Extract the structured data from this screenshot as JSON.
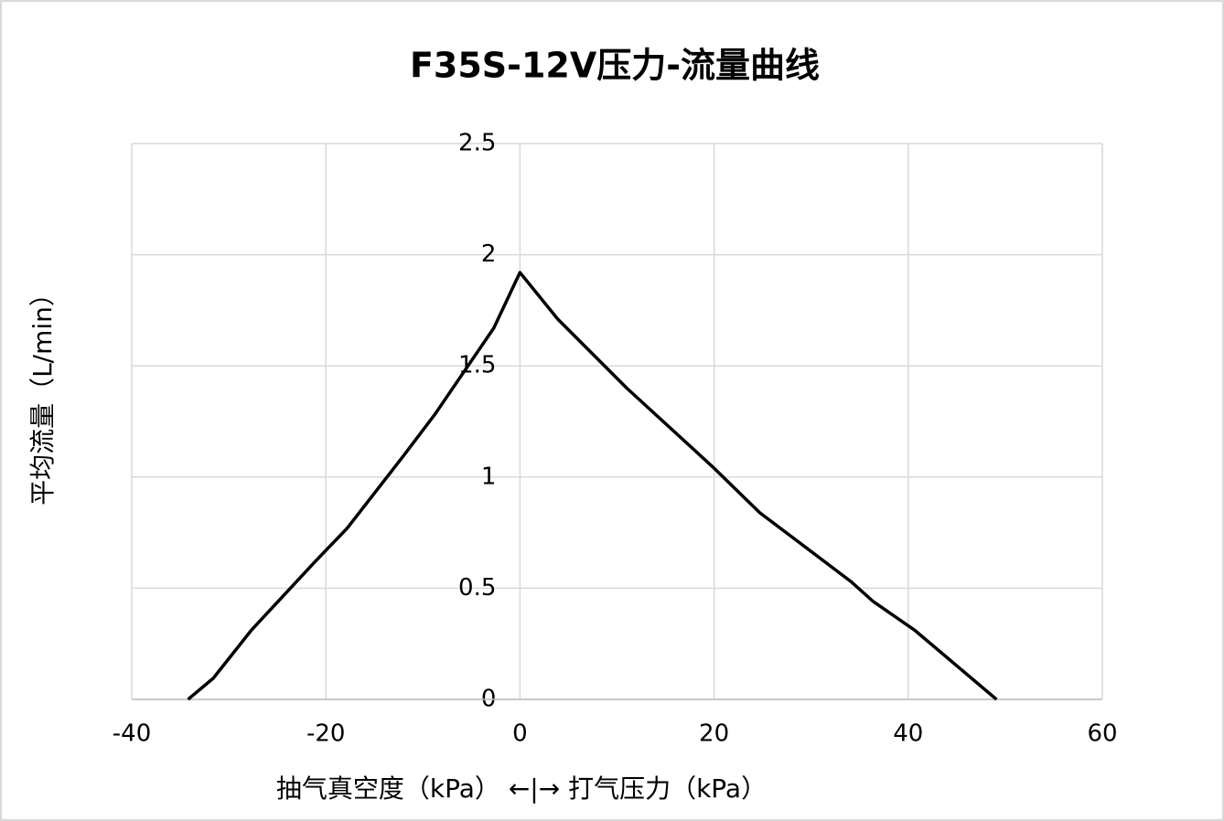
{
  "chart_data": {
    "type": "line",
    "title": "F35S-12V压力-流量曲线",
    "x_label": "抽气真空度（kPa）  ←|→  打气压力（kPa）",
    "y_label": "平均流量（L/min）",
    "xlim": [
      -40,
      60
    ],
    "xticks": [
      -40,
      -20,
      0,
      20,
      40,
      60
    ],
    "ylim": [
      0,
      2.5
    ],
    "yticks": [
      0,
      0.5,
      1,
      1.5,
      2,
      2.5
    ],
    "grid": true,
    "series": [
      {
        "color": "#000000",
        "x": [
          -34.2,
          -31.6,
          -27.7,
          -21.1,
          -17.8,
          -12.1,
          -8.8,
          -2.7,
          0,
          3.9,
          11,
          20,
          24.7,
          34.1,
          36.4,
          40.7,
          49.1
        ],
        "values": [
          0,
          0.095,
          0.31,
          0.62,
          0.77,
          1.09,
          1.28,
          1.67,
          1.92,
          1.71,
          1.4,
          1.04,
          0.84,
          0.53,
          0.44,
          0.31,
          0
        ]
      }
    ]
  }
}
